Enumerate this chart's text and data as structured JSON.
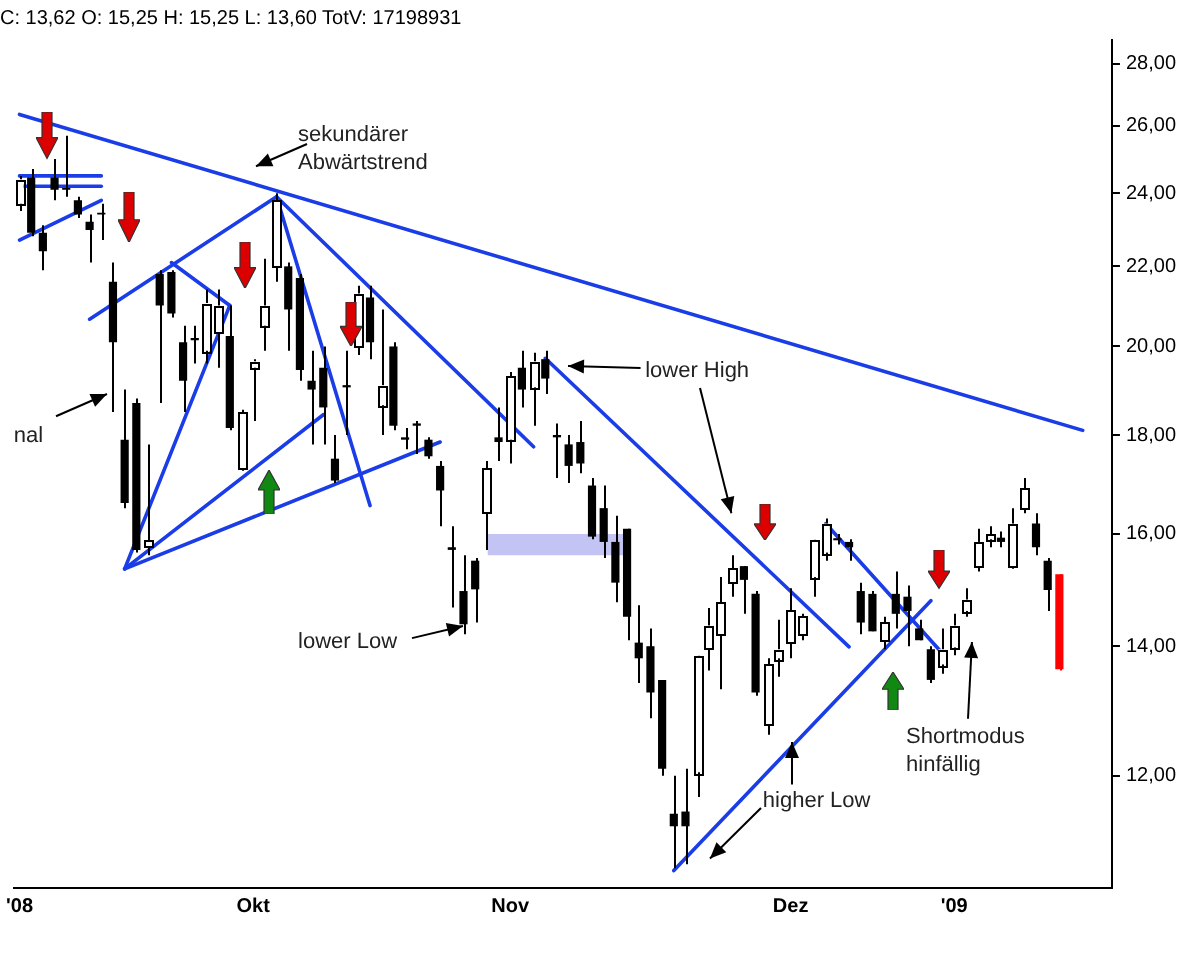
{
  "chart_data": {
    "type": "candlestick",
    "title": "C: 13,62 O: 15,25 H: 15,25 L: 13,60 TotV: 17198931",
    "categories": [
      "'08",
      null,
      null,
      null,
      null,
      null,
      null,
      null,
      null,
      null,
      null,
      null,
      null,
      null,
      null,
      null,
      null,
      null,
      null,
      null,
      "Okt",
      null,
      null,
      null,
      null,
      null,
      null,
      null,
      null,
      null,
      null,
      null,
      null,
      null,
      null,
      null,
      null,
      null,
      null,
      null,
      null,
      null,
      "Nov",
      null,
      null,
      null,
      null,
      null,
      null,
      null,
      null,
      null,
      null,
      null,
      null,
      null,
      null,
      null,
      null,
      null,
      null,
      null,
      null,
      null,
      null,
      null,
      "Dez",
      null,
      null,
      null,
      null,
      null,
      null,
      null,
      null,
      null,
      null,
      null,
      null,
      null,
      "'09",
      null,
      null,
      null,
      null,
      null,
      null,
      null,
      null,
      null,
      null,
      null,
      null,
      null
    ],
    "ohlc": [
      [
        23.7,
        24.5,
        23.5,
        24.4
      ],
      [
        24.45,
        24.7,
        22.8,
        22.9
      ],
      [
        22.9,
        23.1,
        21.9,
        22.4
      ],
      [
        24.45,
        25.0,
        23.8,
        24.1
      ],
      [
        24.15,
        25.7,
        23.9,
        24.1
      ],
      [
        23.8,
        23.9,
        23.3,
        23.4
      ],
      [
        23.2,
        23.4,
        22.1,
        22.97
      ],
      [
        23.45,
        23.7,
        22.7,
        23.4
      ],
      [
        21.6,
        22.1,
        18.5,
        20.1
      ],
      [
        17.9,
        19.0,
        16.5,
        16.6
      ],
      [
        18.7,
        18.8,
        15.65,
        15.7
      ],
      [
        15.76,
        17.8,
        15.6,
        15.88
      ],
      [
        21.8,
        21.9,
        18.7,
        21.0
      ],
      [
        21.85,
        21.9,
        20.7,
        20.8
      ],
      [
        20.1,
        20.5,
        18.5,
        19.2
      ],
      [
        20.2,
        20.5,
        19.6,
        20.15
      ],
      [
        19.9,
        21.4,
        19.6,
        21.06
      ],
      [
        20.35,
        21.4,
        19.5,
        21.0
      ],
      [
        20.25,
        21.0,
        18.1,
        18.15
      ],
      [
        17.3,
        18.55,
        17.25,
        18.5
      ],
      [
        19.5,
        19.7,
        18.3,
        19.65
      ],
      [
        20.5,
        22.2,
        19.9,
        21.0
      ],
      [
        22.0,
        24.0,
        21.6,
        23.8
      ],
      [
        22.0,
        22.1,
        19.9,
        20.9
      ],
      [
        21.7,
        21.8,
        19.2,
        19.45
      ],
      [
        19.2,
        19.9,
        17.8,
        19.0
      ],
      [
        19.5,
        20.0,
        17.8,
        18.6
      ],
      [
        17.5,
        18.0,
        17.0,
        17.05
      ],
      [
        19.1,
        19.9,
        18.0,
        19.05
      ],
      [
        20.0,
        21.5,
        19.8,
        21.3
      ],
      [
        21.2,
        21.5,
        19.7,
        20.1
      ],
      [
        18.65,
        20.9,
        18.0,
        19.1
      ],
      [
        20.0,
        20.1,
        18.1,
        18.2
      ],
      [
        17.95,
        18.15,
        17.7,
        17.9
      ],
      [
        18.25,
        18.3,
        17.6,
        18.2
      ],
      [
        17.9,
        17.95,
        17.5,
        17.55
      ],
      [
        17.35,
        17.45,
        16.15,
        16.85
      ],
      [
        15.75,
        16.15,
        14.66,
        15.7
      ],
      [
        14.95,
        15.6,
        14.2,
        14.37
      ],
      [
        15.5,
        15.55,
        14.4,
        14.98
      ],
      [
        16.4,
        17.45,
        15.7,
        17.3
      ],
      [
        17.95,
        18.6,
        17.45,
        17.85
      ],
      [
        17.9,
        19.4,
        17.4,
        19.3
      ],
      [
        19.5,
        19.9,
        18.6,
        19.0
      ],
      [
        19.05,
        19.85,
        18.2,
        19.65
      ],
      [
        19.7,
        19.9,
        18.9,
        19.25
      ],
      [
        18.0,
        18.25,
        17.1,
        17.95
      ],
      [
        17.8,
        18.0,
        17.0,
        17.35
      ],
      [
        17.85,
        18.3,
        17.2,
        17.4
      ],
      [
        16.95,
        17.1,
        15.9,
        15.95
      ],
      [
        16.5,
        16.95,
        15.55,
        15.85
      ],
      [
        15.85,
        16.35,
        14.75,
        15.1
      ],
      [
        16.1,
        16.1,
        14.1,
        14.5
      ],
      [
        14.06,
        14.7,
        13.4,
        13.8
      ],
      [
        14.0,
        14.3,
        12.85,
        13.25
      ],
      [
        13.45,
        13.45,
        12.0,
        12.1
      ],
      [
        11.47,
        12.0,
        10.75,
        11.3
      ],
      [
        11.5,
        12.1,
        10.8,
        11.3
      ],
      [
        12.05,
        13.85,
        11.7,
        13.85
      ],
      [
        13.97,
        14.65,
        13.6,
        14.35
      ],
      [
        14.2,
        15.2,
        13.3,
        14.75
      ],
      [
        15.1,
        15.6,
        14.85,
        15.35
      ],
      [
        15.4,
        15.4,
        14.55,
        15.15
      ],
      [
        14.9,
        14.95,
        13.2,
        13.25
      ],
      [
        12.75,
        13.8,
        12.6,
        13.7
      ],
      [
        13.8,
        14.45,
        13.5,
        13.95
      ],
      [
        14.05,
        15.0,
        13.8,
        14.6
      ],
      [
        14.2,
        14.55,
        14.1,
        14.5
      ],
      [
        15.2,
        15.9,
        14.85,
        15.9
      ],
      [
        15.65,
        16.3,
        15.5,
        16.2
      ],
      [
        15.92,
        16.0,
        15.8,
        15.88
      ],
      [
        15.85,
        15.9,
        15.5,
        15.75
      ],
      [
        14.95,
        15.1,
        14.2,
        14.4
      ],
      [
        14.9,
        14.95,
        14.25,
        14.25
      ],
      [
        14.1,
        14.5,
        13.95,
        14.4
      ],
      [
        14.9,
        15.3,
        14.3,
        14.55
      ],
      [
        14.85,
        15.05,
        14.0,
        14.6
      ],
      [
        14.3,
        14.45,
        14.1,
        14.1
      ],
      [
        13.95,
        14.0,
        13.4,
        13.45
      ],
      [
        13.7,
        14.3,
        13.55,
        13.95
      ],
      [
        13.98,
        14.55,
        13.85,
        14.35
      ],
      [
        14.6,
        15.0,
        14.5,
        14.8
      ],
      [
        15.4,
        16.1,
        15.3,
        15.85
      ],
      [
        15.9,
        16.15,
        15.75,
        16.0
      ],
      [
        15.93,
        16.05,
        15.75,
        15.85
      ],
      [
        15.4,
        16.5,
        15.35,
        16.2
      ],
      [
        16.5,
        17.1,
        16.4,
        16.9
      ],
      [
        16.2,
        16.4,
        15.6,
        15.75
      ],
      [
        15.5,
        15.55,
        14.6,
        14.97
      ],
      [
        15.25,
        15.25,
        13.6,
        13.62
      ],
      null,
      null,
      null,
      null
    ],
    "colors": [
      "#ffffff",
      "#000000",
      "#000000",
      "#000000",
      "#000000",
      "#000000",
      "#000000",
      "#000000",
      "#000000",
      "#000000",
      "#000000",
      "#ffffff",
      "#000000",
      "#000000",
      "#000000",
      "#000000",
      "#ffffff",
      "#ffffff",
      "#000000",
      "#ffffff",
      "#ffffff",
      "#ffffff",
      "#ffffff",
      "#000000",
      "#000000",
      "#000000",
      "#000000",
      "#000000",
      "#000000",
      "#ffffff",
      "#000000",
      "#ffffff",
      "#000000",
      "#000000",
      "#000000",
      "#000000",
      "#000000",
      "#000000",
      "#000000",
      "#000000",
      "#ffffff",
      "#000000",
      "#ffffff",
      "#000000",
      "#ffffff",
      "#000000",
      "#000000",
      "#000000",
      "#000000",
      "#000000",
      "#000000",
      "#000000",
      "#000000",
      "#000000",
      "#000000",
      "#000000",
      "#000000",
      "#000000",
      "#ffffff",
      "#ffffff",
      "#ffffff",
      "#ffffff",
      "#000000",
      "#000000",
      "#ffffff",
      "#ffffff",
      "#ffffff",
      "#ffffff",
      "#ffffff",
      "#ffffff",
      "#000000",
      "#000000",
      "#000000",
      "#000000",
      "#ffffff",
      "#000000",
      "#000000",
      "#000000",
      "#000000",
      "#ffffff",
      "#ffffff",
      "#ffffff",
      "#ffffff",
      "#ffffff",
      "#000000",
      "#ffffff",
      "#ffffff",
      "#000000",
      "#000000",
      "#ff0000",
      null,
      null,
      null,
      null
    ],
    "log": "y",
    "ylim": [
      10.5,
      28.8
    ],
    "yticks": [
      {
        "value": 12,
        "label": "12,00"
      },
      {
        "value": 14,
        "label": "14,00"
      },
      {
        "value": 16,
        "label": "16,00"
      },
      {
        "value": 18,
        "label": "18,00"
      },
      {
        "value": 20,
        "label": "20,00"
      },
      {
        "value": 22,
        "label": "22,00"
      },
      {
        "value": 24,
        "label": "24,00"
      },
      {
        "value": 26,
        "label": "26,00"
      },
      {
        "value": 28,
        "label": "28,00"
      }
    ],
    "series": [
      {
        "type": "line",
        "color": "#1a3de8",
        "values": [
          26.36,
          null,
          null,
          null,
          null,
          null,
          null,
          null,
          null,
          null,
          null,
          null,
          null,
          null,
          null,
          null,
          null,
          null,
          null,
          null,
          null,
          null,
          null,
          null,
          null,
          null,
          null,
          null,
          null,
          null,
          null,
          null,
          null,
          null,
          null,
          null,
          null,
          null,
          null,
          null,
          null,
          null,
          null,
          null,
          null,
          null,
          null,
          null,
          null,
          null,
          null,
          null,
          null,
          null,
          null,
          null,
          null,
          null,
          null,
          null,
          null,
          null,
          null,
          null,
          null,
          null,
          null,
          null,
          null,
          null,
          null,
          null,
          null,
          null,
          null,
          null,
          null,
          null,
          null,
          null,
          null,
          null,
          null,
          null,
          null,
          null,
          null,
          null,
          null,
          null,
          null,
          18.1,
          null,
          null
        ]
      },
      {
        "type": "line",
        "color": "#1a3de8",
        "values": [
          24.5,
          null,
          null,
          null,
          null,
          null,
          null,
          24.5,
          null,
          null,
          null,
          null,
          null,
          null,
          null,
          null,
          null,
          null,
          null,
          null,
          null,
          null,
          null,
          null,
          null,
          null,
          null,
          null,
          null,
          null,
          null,
          null,
          null,
          null,
          null,
          null,
          null,
          null,
          null,
          null,
          null,
          null,
          null,
          null,
          null,
          null,
          null,
          null,
          null,
          null,
          null,
          null,
          null,
          null,
          null,
          null,
          null,
          null,
          null,
          null,
          null,
          null,
          null,
          null,
          null,
          null,
          null,
          null,
          null,
          null,
          null,
          null,
          null,
          null,
          null,
          null,
          null,
          null,
          null,
          null,
          null,
          null,
          null,
          null,
          null,
          null,
          null,
          null,
          null,
          null,
          null,
          null,
          null,
          null
        ]
      },
      {
        "type": "line",
        "color": "#1a3de8",
        "values": [
          24.2,
          null,
          null,
          null,
          null,
          null,
          null,
          24.2,
          null,
          null,
          null,
          null,
          null,
          null,
          null,
          null,
          null,
          null,
          null,
          null,
          null,
          null,
          null,
          null,
          null,
          null,
          null,
          null,
          null,
          null,
          null,
          null,
          null,
          null,
          null,
          null,
          null,
          null,
          null,
          null,
          null,
          null,
          null,
          null,
          null,
          null,
          null,
          null,
          null,
          null,
          null,
          null,
          null,
          null,
          null,
          null,
          null,
          null,
          null,
          null,
          null,
          null,
          null,
          null,
          null,
          null,
          null,
          null,
          null,
          null,
          null,
          null,
          null,
          null,
          null,
          null,
          null,
          null,
          null,
          null,
          null,
          null,
          null,
          null,
          null,
          null,
          null,
          null,
          null,
          null,
          null,
          null,
          null,
          null
        ]
      },
      {
        "type": "line",
        "color": "#1a3de8",
        "values": [
          22.7,
          null,
          null,
          null,
          null,
          null,
          null,
          23.8,
          null,
          null,
          null,
          null,
          null,
          null,
          null,
          null,
          null,
          null,
          null,
          null,
          null,
          null,
          null,
          null,
          null,
          null,
          null,
          null,
          null,
          null,
          null,
          null,
          null,
          null,
          null,
          null,
          null,
          null,
          null,
          null,
          null,
          null,
          null,
          null,
          null,
          null,
          null,
          null,
          null,
          null,
          null,
          null,
          null,
          null,
          null,
          null,
          null,
          null,
          null,
          null,
          null,
          null,
          null,
          null,
          null,
          null,
          null,
          null,
          null,
          null,
          null,
          null,
          null,
          null,
          null,
          null,
          null,
          null,
          null,
          null,
          null,
          null,
          null,
          null,
          null,
          null,
          null,
          null,
          null,
          null,
          null,
          null,
          null,
          null
        ]
      },
      {
        "type": "line",
        "color": "#1a3de8",
        "values": [
          null,
          null,
          null,
          null,
          null,
          null,
          20.66,
          null,
          null,
          null,
          null,
          null,
          null,
          null,
          null,
          null,
          null,
          null,
          null,
          null,
          null,
          null,
          23.9,
          null,
          null,
          null,
          null,
          null,
          null,
          null,
          null,
          null,
          null,
          null,
          null,
          null,
          null,
          null,
          null,
          null,
          null,
          null,
          null,
          null,
          null,
          null,
          null,
          null,
          null,
          null,
          null,
          null,
          null,
          null,
          null,
          null,
          null,
          null,
          null,
          null,
          null,
          null,
          null,
          null,
          null,
          null,
          null,
          null,
          null,
          null,
          null,
          null,
          null,
          null,
          null,
          null,
          null,
          null,
          null,
          null,
          null,
          null,
          null,
          null,
          null,
          null,
          null,
          null,
          null,
          null,
          null,
          null,
          null,
          null
        ]
      },
      {
        "type": "line",
        "color": "#1a3de8",
        "values": [
          null,
          null,
          null,
          null,
          null,
          null,
          null,
          null,
          null,
          null,
          null,
          null,
          null,
          null,
          null,
          null,
          null,
          null,
          null,
          null,
          null,
          null,
          23.9,
          null,
          null,
          null,
          null,
          null,
          null,
          null,
          null,
          null,
          null,
          null,
          null,
          null,
          null,
          null,
          null,
          null,
          null,
          null,
          null,
          null,
          17.75,
          null,
          null,
          null,
          null,
          null,
          null,
          null,
          null,
          null,
          null,
          null,
          null,
          null,
          null,
          null,
          null,
          null,
          null,
          null,
          null,
          null,
          null,
          null,
          null,
          null,
          null,
          null,
          null,
          null,
          null,
          null,
          null,
          null,
          null,
          null,
          null,
          null,
          null,
          null,
          null,
          null,
          null,
          null,
          null,
          null,
          null,
          null,
          null,
          null
        ]
      },
      {
        "type": "line",
        "color": "#1a3de8",
        "values": [
          null,
          null,
          null,
          null,
          null,
          null,
          null,
          null,
          null,
          null,
          null,
          null,
          null,
          null,
          null,
          null,
          null,
          null,
          null,
          null,
          null,
          null,
          23.9,
          null,
          null,
          null,
          null,
          null,
          null,
          null,
          16.55,
          null,
          null,
          null,
          null,
          null,
          null,
          null,
          null,
          null,
          null,
          null,
          null,
          null,
          null,
          null,
          null,
          null,
          null,
          null,
          null,
          null,
          null,
          null,
          null,
          null,
          null,
          null,
          null,
          null,
          null,
          null,
          null,
          null,
          null,
          null,
          null,
          null,
          null,
          null,
          null,
          null,
          null,
          null,
          null,
          null,
          null,
          null,
          null,
          null,
          null,
          null,
          null,
          null,
          null,
          null,
          null,
          null,
          null,
          null,
          null,
          null,
          null,
          null
        ]
      },
      {
        "type": "line",
        "color": "#1a3de8",
        "values": [
          null,
          null,
          null,
          null,
          null,
          null,
          null,
          null,
          null,
          15.35,
          null,
          null,
          null,
          null,
          null,
          null,
          null,
          null,
          21.0,
          null,
          null,
          null,
          null,
          null,
          null,
          null,
          null,
          null,
          null,
          null,
          null,
          null,
          null,
          null,
          null,
          null,
          null,
          null,
          null,
          null,
          null,
          null,
          null,
          null,
          null,
          null,
          null,
          null,
          null,
          null,
          null,
          null,
          null,
          null,
          null,
          null,
          null,
          null,
          null,
          null,
          null,
          null,
          null,
          null,
          null,
          null,
          null,
          null,
          null,
          null,
          null,
          null,
          null,
          null,
          null,
          null,
          null,
          null,
          null,
          null,
          null,
          null,
          null,
          null,
          null,
          null,
          null,
          null,
          null,
          null,
          null,
          null,
          null,
          null
        ]
      },
      {
        "type": "line",
        "color": "#1a3de8",
        "values": [
          null,
          null,
          null,
          null,
          null,
          null,
          null,
          null,
          null,
          null,
          null,
          null,
          null,
          22.1,
          null,
          null,
          null,
          null,
          21.0,
          null,
          null,
          null,
          null,
          null,
          null,
          null,
          null,
          null,
          null,
          null,
          null,
          null,
          null,
          null,
          null,
          null,
          null,
          null,
          null,
          null,
          null,
          null,
          null,
          null,
          null,
          null,
          null,
          null,
          null,
          null,
          null,
          null,
          null,
          null,
          null,
          null,
          null,
          null,
          null,
          null,
          null,
          null,
          null,
          null,
          null,
          null,
          null,
          null,
          null,
          null,
          null,
          null,
          null,
          null,
          null,
          null,
          null,
          null,
          null,
          null,
          null,
          null,
          null,
          null,
          null,
          null,
          null,
          null,
          null,
          null,
          null,
          null,
          null,
          null
        ]
      },
      {
        "type": "line",
        "color": "#1a3de8",
        "values": [
          null,
          null,
          null,
          null,
          null,
          null,
          null,
          null,
          null,
          15.35,
          null,
          null,
          null,
          null,
          null,
          null,
          null,
          null,
          null,
          null,
          null,
          null,
          null,
          null,
          null,
          null,
          18.44,
          null,
          null,
          null,
          null,
          null,
          null,
          null,
          null,
          null,
          null,
          null,
          null,
          null,
          null,
          null,
          null,
          null,
          null,
          null,
          null,
          null,
          null,
          null,
          null,
          null,
          null,
          null,
          null,
          null,
          null,
          null,
          null,
          null,
          null,
          null,
          null,
          null,
          null,
          null,
          null,
          null,
          null,
          null,
          null,
          null,
          null,
          null,
          null,
          null,
          null,
          null,
          null,
          null,
          null,
          null,
          null,
          null,
          null,
          null,
          null,
          null,
          null,
          null,
          null,
          null,
          null,
          null
        ]
      },
      {
        "type": "line",
        "color": "#1a3de8",
        "values": [
          null,
          null,
          null,
          null,
          null,
          null,
          null,
          null,
          null,
          15.35,
          null,
          null,
          null,
          null,
          null,
          null,
          null,
          null,
          null,
          null,
          null,
          null,
          null,
          null,
          null,
          null,
          null,
          null,
          null,
          null,
          null,
          null,
          null,
          null,
          null,
          null,
          17.85,
          null,
          null,
          null,
          null,
          null,
          null,
          null,
          null,
          null,
          null,
          null,
          null,
          null,
          null,
          null,
          null,
          null,
          null,
          null,
          null,
          null,
          null,
          null,
          null,
          null,
          null,
          null,
          null,
          null,
          null,
          null,
          null,
          null,
          null,
          null,
          null,
          null,
          null,
          null,
          null,
          null,
          null,
          null,
          null,
          null,
          null,
          null,
          null,
          null,
          null,
          null,
          null,
          null,
          null,
          null,
          null,
          null
        ]
      },
      {
        "type": "line",
        "color": "#1a3de8",
        "values": [
          null,
          null,
          null,
          null,
          null,
          null,
          null,
          null,
          null,
          null,
          null,
          null,
          null,
          null,
          null,
          null,
          null,
          null,
          null,
          null,
          null,
          null,
          null,
          null,
          null,
          null,
          null,
          null,
          null,
          null,
          null,
          null,
          null,
          null,
          null,
          null,
          null,
          null,
          null,
          null,
          null,
          null,
          null,
          null,
          null,
          19.72,
          null,
          null,
          null,
          null,
          null,
          null,
          null,
          null,
          null,
          null,
          null,
          null,
          null,
          null,
          null,
          null,
          null,
          null,
          null,
          null,
          null,
          null,
          null,
          null,
          null,
          13.99,
          null,
          null,
          null,
          null,
          null,
          null,
          null,
          null,
          null,
          null,
          null,
          null,
          null,
          null,
          null,
          null,
          null,
          null,
          null,
          null,
          null,
          null
        ]
      },
      {
        "type": "line",
        "color": "#1a3de8",
        "values": [
          null,
          null,
          null,
          null,
          null,
          null,
          null,
          null,
          null,
          null,
          null,
          null,
          null,
          null,
          null,
          null,
          null,
          null,
          null,
          null,
          null,
          null,
          null,
          null,
          null,
          null,
          null,
          null,
          null,
          null,
          null,
          null,
          null,
          null,
          null,
          null,
          null,
          null,
          null,
          null,
          null,
          null,
          null,
          null,
          null,
          null,
          null,
          null,
          null,
          null,
          null,
          null,
          null,
          null,
          null,
          null,
          null,
          null,
          null,
          null,
          null,
          null,
          null,
          null,
          null,
          null,
          null,
          null,
          null,
          16.2,
          null,
          null,
          null,
          null,
          null,
          null,
          null,
          null,
          null,
          13.88,
          null,
          null,
          null,
          null,
          null,
          null,
          null,
          null,
          null,
          null,
          null,
          null,
          null,
          null
        ]
      },
      {
        "type": "line",
        "color": "#1a3de8",
        "values": [
          null,
          null,
          null,
          null,
          null,
          null,
          null,
          null,
          null,
          null,
          null,
          null,
          null,
          null,
          null,
          null,
          null,
          null,
          null,
          null,
          null,
          null,
          null,
          null,
          null,
          null,
          null,
          null,
          null,
          null,
          null,
          null,
          null,
          null,
          null,
          null,
          null,
          null,
          null,
          null,
          null,
          null,
          null,
          null,
          null,
          null,
          null,
          null,
          null,
          null,
          null,
          null,
          null,
          null,
          null,
          null,
          10.72,
          null,
          null,
          null,
          null,
          null,
          null,
          null,
          null,
          null,
          null,
          null,
          null,
          null,
          null,
          null,
          null,
          null,
          null,
          null,
          null,
          null,
          14.78,
          null,
          null,
          null,
          null,
          null,
          null,
          null,
          null,
          null,
          null,
          null,
          null,
          null,
          null,
          null
        ]
      }
    ],
    "bands": [
      {
        "axis": "y",
        "from": 15.6,
        "to": 16.0,
        "color": "#c4c4f4"
      }
    ],
    "annotations": [
      "sekundärer Abwärtstrend",
      "nal",
      "lower Low",
      "lower High",
      "higher Low",
      "Shortmodus hinfällig"
    ]
  }
}
